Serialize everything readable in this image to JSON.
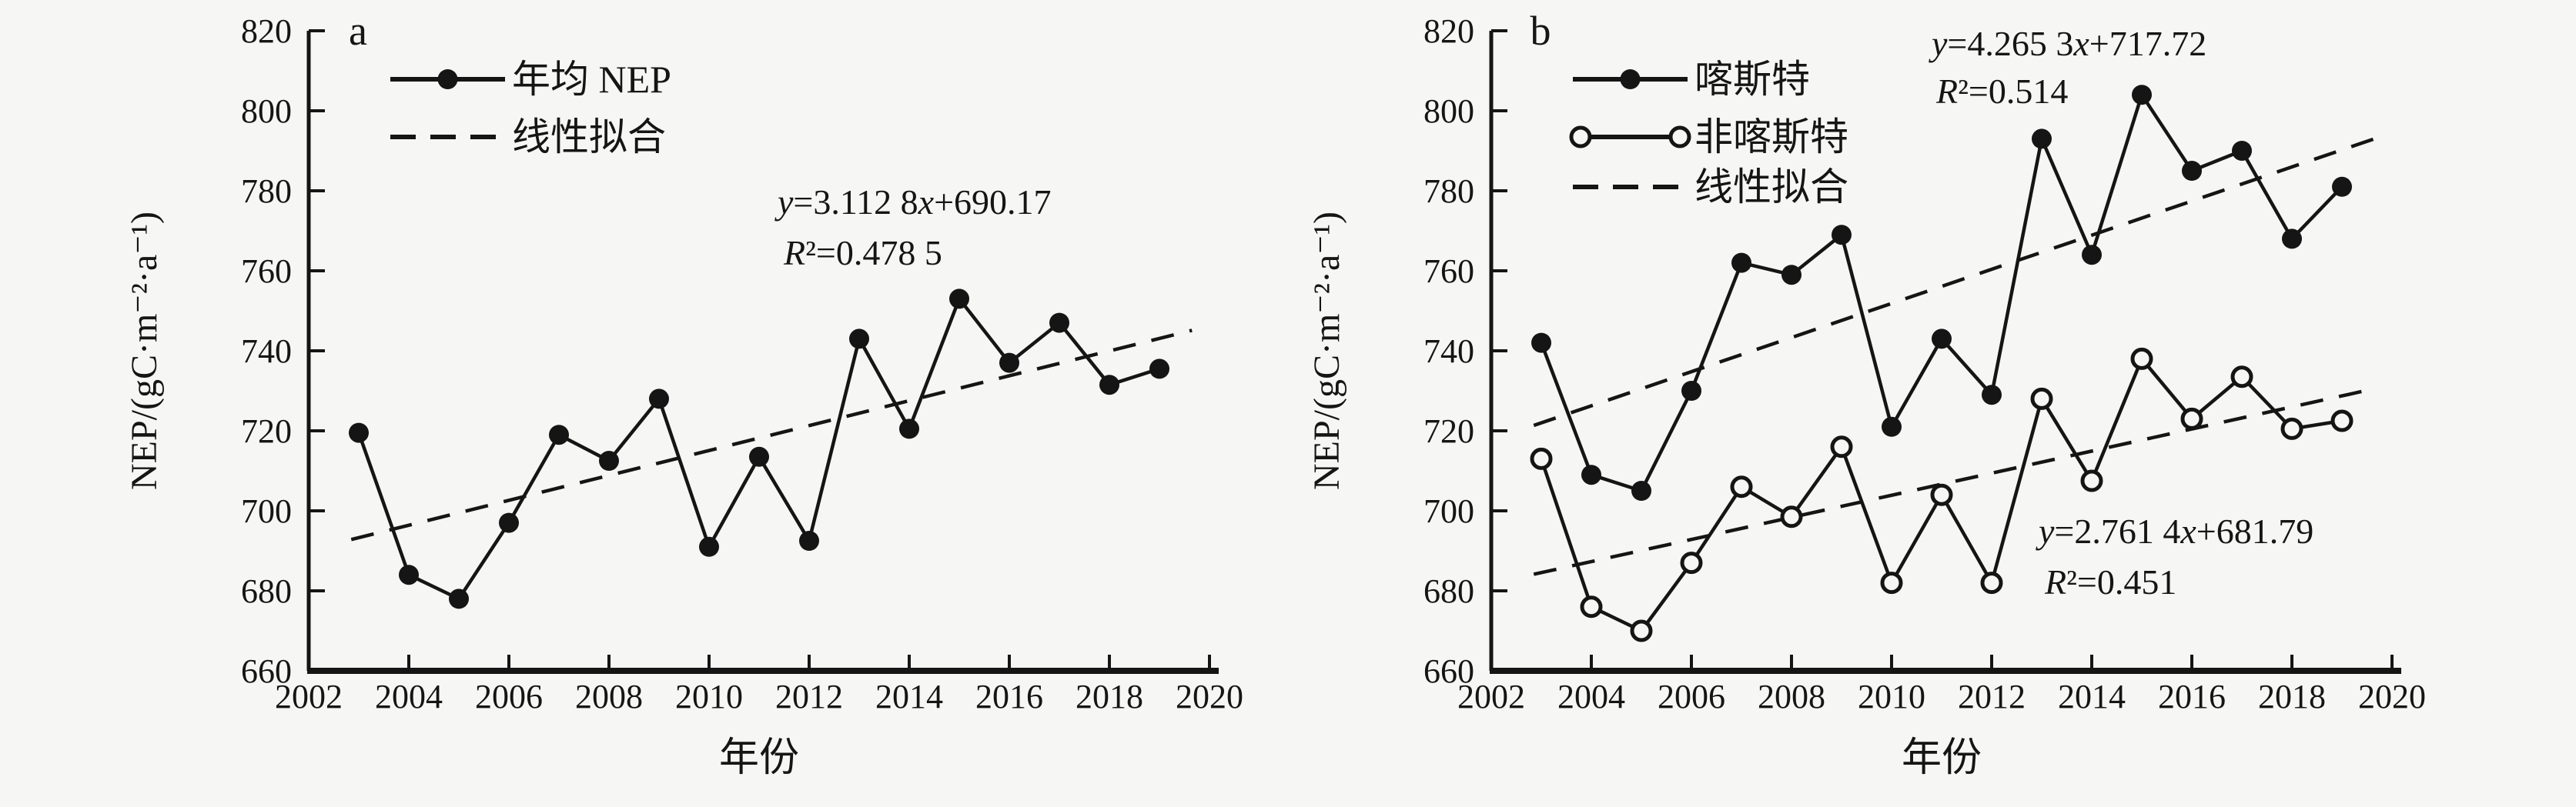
{
  "figure": {
    "background": "#f6f6f4",
    "ink": "#151515",
    "xlabel": "年份",
    "ylabel": "NEP/(gC·m⁻²·a⁻¹)"
  },
  "chart_data": [
    {
      "type": "line",
      "panel_label": "a",
      "xlabel": "年份",
      "ylabel": "NEP/(gC·m⁻²·a⁻¹)",
      "xlim": [
        2002,
        2020
      ],
      "xtick_step": 2,
      "ylim": [
        660,
        820
      ],
      "ytick_step": 20,
      "grid": false,
      "legend_position": "top-left-inside",
      "x": [
        2003,
        2004,
        2005,
        2006,
        2007,
        2008,
        2009,
        2010,
        2011,
        2012,
        2013,
        2014,
        2015,
        2016,
        2017,
        2018,
        2019
      ],
      "series": [
        {
          "key": "annual-nep",
          "name": "年均 NEP",
          "marker": "filled-dot",
          "values": [
            719.5,
            684,
            678,
            697,
            719,
            712.5,
            728,
            691,
            713.5,
            692.5,
            743,
            720.5,
            753,
            737,
            747,
            731.5,
            735.5
          ]
        }
      ],
      "trends": [
        {
          "key": "annual-nep-fit",
          "slope": 3.1128,
          "intercept": 690.17
        }
      ],
      "annotations": [
        {
          "line1": "y=3.112 8x+690.17",
          "line2": "R²=0.478 5"
        }
      ],
      "legend": [
        {
          "key": "annual-nep",
          "label": "年均 NEP",
          "symbol": "line-center-filled-dot"
        },
        {
          "key": "linear-fit",
          "label": "线性拟合",
          "symbol": "dashed-line"
        }
      ]
    },
    {
      "type": "line",
      "panel_label": "b",
      "xlabel": "年份",
      "ylabel": "NEP/(gC·m⁻²·a⁻¹)",
      "xlim": [
        2002,
        2020
      ],
      "xtick_step": 2,
      "ylim": [
        660,
        820
      ],
      "ytick_step": 20,
      "grid": false,
      "legend_position": "top-left-inside",
      "x": [
        2003,
        2004,
        2005,
        2006,
        2007,
        2008,
        2009,
        2010,
        2011,
        2012,
        2013,
        2014,
        2015,
        2016,
        2017,
        2018,
        2019
      ],
      "series": [
        {
          "key": "karst",
          "name": "喀斯特",
          "marker": "filled-dot",
          "values": [
            742,
            709,
            705,
            730,
            762,
            759,
            769,
            721,
            743,
            729,
            793,
            764,
            804,
            785,
            790,
            768,
            781
          ]
        },
        {
          "key": "non-karst",
          "name": "非喀斯特",
          "marker": "open-dot",
          "values": [
            713,
            676,
            670,
            687,
            706,
            698.5,
            716,
            682,
            704,
            682,
            728,
            707.5,
            738,
            723,
            733.5,
            720.5,
            722.5
          ]
        }
      ],
      "trends": [
        {
          "key": "karst-fit",
          "slope": 4.2653,
          "intercept": 717.72
        },
        {
          "key": "non-karst-fit",
          "slope": 2.7614,
          "intercept": 681.79
        }
      ],
      "annotations": [
        {
          "line1": "y=4.265 3x+717.72",
          "line2": "R²=0.514"
        },
        {
          "line1": "y=2.761 4x+681.79",
          "line2": "R²=0.451"
        }
      ],
      "legend": [
        {
          "key": "karst",
          "label": "喀斯特",
          "symbol": "line-center-filled-dot"
        },
        {
          "key": "non-karst",
          "label": "非喀斯特",
          "symbol": "line-end-open-dots"
        },
        {
          "key": "linear-fit",
          "label": "线性拟合",
          "symbol": "dashed-line"
        }
      ]
    }
  ]
}
